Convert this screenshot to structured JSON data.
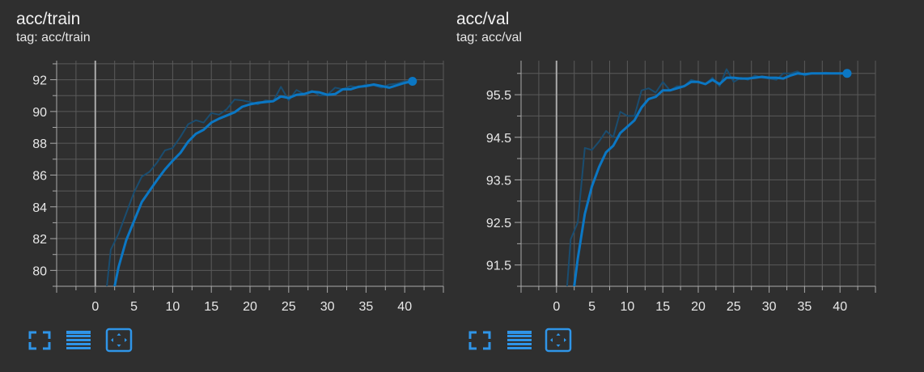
{
  "cards": [
    {
      "title": "acc/train",
      "tag": "tag: acc/train"
    },
    {
      "title": "acc/val",
      "tag": "tag: acc/val"
    }
  ],
  "toolbar": {
    "buttons": [
      {
        "icon": "fullscreen-icon"
      },
      {
        "icon": "data-table-icon"
      },
      {
        "icon": "fit-domain-icon"
      }
    ],
    "icon_color": "#2f95e8"
  },
  "colors": {
    "background": "#2f2f2f",
    "grid": "#5a5a5a",
    "axis": "#aaaaaa",
    "smoothed_line": "#0b77c4",
    "raw_line": "#1a4d70"
  },
  "chart_data": [
    {
      "type": "line",
      "title": "acc/train",
      "xlabel": "",
      "ylabel": "",
      "xlim": [
        -5,
        45
      ],
      "ylim": [
        79,
        93.2
      ],
      "xticks": [
        0,
        5,
        10,
        15,
        20,
        25,
        30,
        35,
        40
      ],
      "yticks": [
        80,
        82,
        84,
        86,
        88,
        90,
        92
      ],
      "grid": true,
      "legend": "none",
      "series": [
        {
          "role": "smoothed",
          "x": [
            2.5,
            3,
            4,
            5,
            6,
            7,
            8,
            9,
            10,
            11,
            12,
            13,
            14,
            15,
            16,
            17,
            18,
            19,
            20,
            21,
            22,
            23,
            24,
            25,
            26,
            27,
            28,
            29,
            30,
            31,
            32,
            33,
            34,
            35,
            36,
            37,
            38,
            39,
            40,
            41
          ],
          "y": [
            79,
            80.2,
            81.9,
            83.1,
            84.3,
            85,
            85.7,
            86.35,
            86.9,
            87.4,
            88.1,
            88.6,
            88.85,
            89.3,
            89.55,
            89.75,
            89.95,
            90.3,
            90.45,
            90.55,
            90.6,
            90.65,
            90.95,
            90.85,
            91.05,
            91.1,
            91.25,
            91.2,
            91.05,
            91.1,
            91.4,
            91.4,
            91.55,
            91.6,
            91.7,
            91.6,
            91.5,
            91.65,
            91.8,
            91.9
          ]
        },
        {
          "role": "raw",
          "x": [
            1.5,
            2,
            3,
            4,
            5,
            6,
            7,
            8,
            9,
            10,
            11,
            12,
            13,
            14,
            15,
            16,
            17,
            18,
            19,
            20,
            21,
            22,
            23,
            24,
            25,
            26,
            27,
            28,
            29,
            30,
            31,
            32,
            33,
            34,
            35,
            36,
            37,
            38,
            39,
            40,
            41
          ],
          "y": [
            79,
            81.3,
            82.3,
            83.6,
            84.9,
            85.9,
            86.2,
            86.8,
            87.55,
            87.7,
            88.4,
            89.2,
            89.45,
            89.3,
            89.9,
            89.8,
            90.15,
            90.75,
            90.7,
            90.6,
            90.45,
            90.7,
            90.65,
            91.55,
            90.7,
            91.35,
            91.1,
            91.3,
            91.0,
            91.05,
            91.5,
            91.4,
            91.6,
            91.5,
            91.7,
            91.65,
            91.5,
            91.7,
            91.75,
            91.9,
            91.9
          ]
        }
      ]
    },
    {
      "type": "line",
      "title": "acc/val",
      "xlabel": "",
      "ylabel": "",
      "xlim": [
        -5,
        45
      ],
      "ylim": [
        91.0,
        96.3
      ],
      "xticks": [
        0,
        5,
        10,
        15,
        20,
        25,
        30,
        35,
        40
      ],
      "yticks": [
        91.5,
        92.5,
        93.5,
        94.5,
        95.5
      ],
      "grid": true,
      "legend": "none",
      "series": [
        {
          "role": "smoothed",
          "x": [
            2.5,
            3,
            4,
            5,
            6,
            7,
            8,
            9,
            10,
            11,
            12,
            13,
            14,
            15,
            16,
            17,
            18,
            19,
            20,
            21,
            22,
            23,
            24,
            25,
            26,
            27,
            28,
            29,
            30,
            31,
            32,
            33,
            34,
            35,
            36,
            37,
            38,
            39,
            40,
            41
          ],
          "y": [
            91.0,
            91.65,
            92.7,
            93.35,
            93.8,
            94.15,
            94.3,
            94.6,
            94.75,
            94.9,
            95.2,
            95.4,
            95.45,
            95.6,
            95.6,
            95.65,
            95.7,
            95.8,
            95.8,
            95.75,
            95.85,
            95.75,
            95.9,
            95.9,
            95.88,
            95.88,
            95.9,
            95.92,
            95.9,
            95.9,
            95.88,
            95.95,
            96.0,
            95.98,
            96.0,
            96.0,
            96.0,
            96.0,
            96.0,
            96.0
          ]
        },
        {
          "role": "raw",
          "x": [
            1.5,
            2,
            3,
            4,
            5,
            6,
            7,
            8,
            9,
            10,
            11,
            12,
            13,
            14,
            15,
            16,
            17,
            18,
            19,
            20,
            21,
            22,
            23,
            24,
            25,
            26,
            27,
            28,
            29,
            30,
            31,
            32,
            33,
            34,
            35,
            36,
            37,
            38,
            39,
            40,
            41
          ],
          "y": [
            91.0,
            92.1,
            92.5,
            94.25,
            94.2,
            94.4,
            94.65,
            94.5,
            95.1,
            95.0,
            95.0,
            95.6,
            95.65,
            95.55,
            95.8,
            95.6,
            95.7,
            95.7,
            95.85,
            95.8,
            95.75,
            95.9,
            95.7,
            96.1,
            95.8,
            95.9,
            95.85,
            95.95,
            95.9,
            95.88,
            95.85,
            96.0,
            96.0,
            96.05,
            95.95,
            96.0,
            96.0,
            96.02,
            96.0,
            96.0,
            96.0
          ]
        }
      ]
    }
  ]
}
